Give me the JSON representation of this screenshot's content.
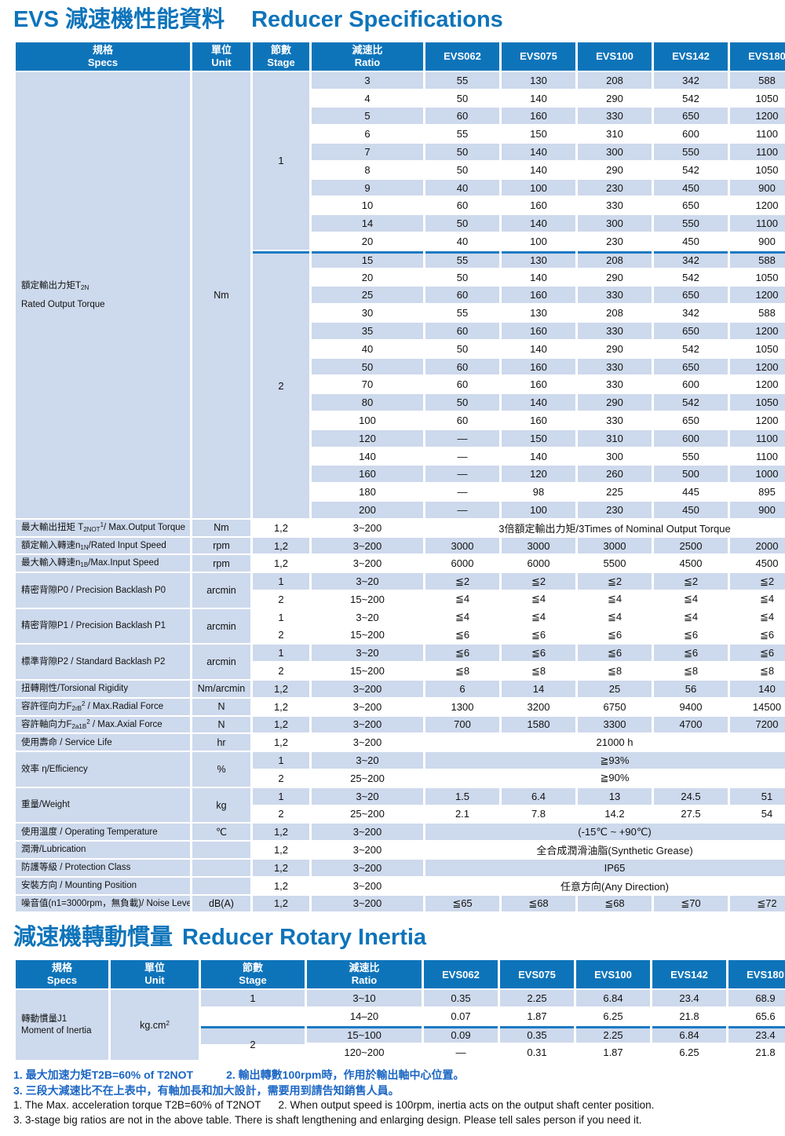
{
  "titles": {
    "spec_zh": "EVS 減速機性能資料",
    "spec_en": "Reducer Specifications",
    "inertia_zh": "減速機轉動慣量",
    "inertia_en": "Reducer Rotary Inertia"
  },
  "colors": {
    "brand_blue": "#0e74ba",
    "row_blue": "#cdd9ec",
    "divider_blue": "#1a7ac4",
    "note_blue": "#1b66c4",
    "text": "#111111"
  },
  "header": {
    "specs": [
      "規格",
      "Specs"
    ],
    "unit": [
      "單位",
      "Unit"
    ],
    "stage": [
      "節數",
      "Stage"
    ],
    "ratio": [
      "減速比",
      "Ratio"
    ],
    "models": [
      "EVS062",
      "EVS075",
      "EVS100",
      "EVS142",
      "EVS180"
    ]
  },
  "spec_table": {
    "torque": {
      "label_zh": [
        {
          "t": "額定輸出力矩T"
        },
        {
          "t": "2N",
          "s": "sub"
        }
      ],
      "label_en": "Rated Output Torque",
      "unit": "Nm",
      "stage1_label": "1",
      "stage2_label": "2",
      "stage1": [
        {
          "ratio": "3",
          "values": [
            "55",
            "130",
            "208",
            "342",
            "588"
          ],
          "shade": true
        },
        {
          "ratio": "4",
          "values": [
            "50",
            "140",
            "290",
            "542",
            "1050"
          ],
          "shade": false
        },
        {
          "ratio": "5",
          "values": [
            "60",
            "160",
            "330",
            "650",
            "1200"
          ],
          "shade": true
        },
        {
          "ratio": "6",
          "values": [
            "55",
            "150",
            "310",
            "600",
            "1100"
          ],
          "shade": false
        },
        {
          "ratio": "7",
          "values": [
            "50",
            "140",
            "300",
            "550",
            "1100"
          ],
          "shade": true
        },
        {
          "ratio": "8",
          "values": [
            "50",
            "140",
            "290",
            "542",
            "1050"
          ],
          "shade": false
        },
        {
          "ratio": "9",
          "values": [
            "40",
            "100",
            "230",
            "450",
            "900"
          ],
          "shade": true
        },
        {
          "ratio": "10",
          "values": [
            "60",
            "160",
            "330",
            "650",
            "1200"
          ],
          "shade": false
        },
        {
          "ratio": "14",
          "values": [
            "50",
            "140",
            "300",
            "550",
            "1100"
          ],
          "shade": true
        },
        {
          "ratio": "20",
          "values": [
            "40",
            "100",
            "230",
            "450",
            "900"
          ],
          "shade": false
        }
      ],
      "stage2": [
        {
          "ratio": "15",
          "values": [
            "55",
            "130",
            "208",
            "342",
            "588"
          ],
          "shade": true
        },
        {
          "ratio": "20",
          "values": [
            "50",
            "140",
            "290",
            "542",
            "1050"
          ],
          "shade": false
        },
        {
          "ratio": "25",
          "values": [
            "60",
            "160",
            "330",
            "650",
            "1200"
          ],
          "shade": true
        },
        {
          "ratio": "30",
          "values": [
            "55",
            "130",
            "208",
            "342",
            "588"
          ],
          "shade": false
        },
        {
          "ratio": "35",
          "values": [
            "60",
            "160",
            "330",
            "650",
            "1200"
          ],
          "shade": true
        },
        {
          "ratio": "40",
          "values": [
            "50",
            "140",
            "290",
            "542",
            "1050"
          ],
          "shade": false
        },
        {
          "ratio": "50",
          "values": [
            "60",
            "160",
            "330",
            "650",
            "1200"
          ],
          "shade": true
        },
        {
          "ratio": "70",
          "values": [
            "60",
            "160",
            "330",
            "600",
            "1200"
          ],
          "shade": false
        },
        {
          "ratio": "80",
          "values": [
            "50",
            "140",
            "290",
            "542",
            "1050"
          ],
          "shade": true
        },
        {
          "ratio": "100",
          "values": [
            "60",
            "160",
            "330",
            "650",
            "1200"
          ],
          "shade": false
        },
        {
          "ratio": "120",
          "values": [
            "—",
            "150",
            "310",
            "600",
            "1100"
          ],
          "shade": true
        },
        {
          "ratio": "140",
          "values": [
            "—",
            "140",
            "300",
            "550",
            "1100"
          ],
          "shade": false
        },
        {
          "ratio": "160",
          "values": [
            "—",
            "120",
            "260",
            "500",
            "1000"
          ],
          "shade": true
        },
        {
          "ratio": "180",
          "values": [
            "—",
            "98",
            "225",
            "445",
            "895"
          ],
          "shade": false
        },
        {
          "ratio": "200",
          "values": [
            "—",
            "100",
            "230",
            "450",
            "900"
          ],
          "shade": true
        }
      ]
    },
    "groups": [
      {
        "label": [
          {
            "t": "最大輸出扭矩 T"
          },
          {
            "t": "2NOT",
            "s": "sub"
          },
          {
            "t": "1",
            "s": "sup"
          },
          {
            "t": "/ Max.Output Torque"
          }
        ],
        "unit": "Nm",
        "rows": [
          {
            "stage": "1,2",
            "ratio": "3~200",
            "span": "3倍額定輸出力矩/3Times of Nominal Output Torque",
            "shade": false
          }
        ]
      },
      {
        "label": [
          {
            "t": "額定輸入轉速n"
          },
          {
            "t": "1N",
            "s": "sub"
          },
          {
            "t": "/Rated Input Speed"
          }
        ],
        "unit": "rpm",
        "rows": [
          {
            "stage": "1,2",
            "ratio": "3~200",
            "values": [
              "3000",
              "3000",
              "3000",
              "2500",
              "2000"
            ],
            "shade": true
          }
        ]
      },
      {
        "label": [
          {
            "t": "最大輸入轉速n"
          },
          {
            "t": "1B",
            "s": "sub"
          },
          {
            "t": "/Max.Input Speed"
          }
        ],
        "unit": "rpm",
        "rows": [
          {
            "stage": "1,2",
            "ratio": "3~200",
            "values": [
              "6000",
              "6000",
              "5500",
              "4500",
              "4500"
            ],
            "shade": false
          }
        ]
      },
      {
        "label": [
          {
            "t": "精密背隙P0 / Precision Backlash P0"
          }
        ],
        "unit": "arcmin",
        "rows": [
          {
            "stage": "1",
            "ratio": "3~20",
            "values": [
              "≦2",
              "≦2",
              "≦2",
              "≦2",
              "≦2"
            ],
            "shade": true
          },
          {
            "stage": "2",
            "ratio": "15~200",
            "values": [
              "≦4",
              "≦4",
              "≦4",
              "≦4",
              "≦4"
            ],
            "shade": false
          }
        ]
      },
      {
        "label": [
          {
            "t": "精密背隙P1 / Precision Backlash P1"
          }
        ],
        "unit": "arcmin",
        "rows": [
          {
            "stage": "1",
            "ratio": "3~20",
            "values": [
              "≦4",
              "≦4",
              "≦4",
              "≦4",
              "≦4"
            ],
            "shade": false
          },
          {
            "stage": "2",
            "ratio": "15~200",
            "values": [
              "≦6",
              "≦6",
              "≦6",
              "≦6",
              "≦6"
            ],
            "shade": false
          }
        ]
      },
      {
        "label": [
          {
            "t": "標準背隙P2 / Standard Backlash P2"
          }
        ],
        "unit": "arcmin",
        "rows": [
          {
            "stage": "1",
            "ratio": "3~20",
            "values": [
              "≦6",
              "≦6",
              "≦6",
              "≦6",
              "≦6"
            ],
            "shade": true
          },
          {
            "stage": "2",
            "ratio": "15~200",
            "values": [
              "≦8",
              "≦8",
              "≦8",
              "≦8",
              "≦8"
            ],
            "shade": false
          }
        ]
      },
      {
        "label": [
          {
            "t": "扭轉剛性/Torsional Rigidity"
          }
        ],
        "unit": "Nm/arcmin",
        "rows": [
          {
            "stage": "1,2",
            "ratio": "3~200",
            "values": [
              "6",
              "14",
              "25",
              "56",
              "140"
            ],
            "shade": true
          }
        ]
      },
      {
        "label": [
          {
            "t": "容許徑向力F"
          },
          {
            "t": "2rB",
            "s": "sub"
          },
          {
            "t": "2",
            "s": "sup"
          },
          {
            "t": " / Max.Radial Force"
          }
        ],
        "unit": "N",
        "rows": [
          {
            "stage": "1,2",
            "ratio": "3~200",
            "values": [
              "1300",
              "3200",
              "6750",
              "9400",
              "14500"
            ],
            "shade": false
          }
        ]
      },
      {
        "label": [
          {
            "t": "容許軸向力F"
          },
          {
            "t": "2a1B",
            "s": "sub"
          },
          {
            "t": "2",
            "s": "sup"
          },
          {
            "t": " / Max.Axial Force"
          }
        ],
        "unit": "N",
        "rows": [
          {
            "stage": "1,2",
            "ratio": "3~200",
            "values": [
              "700",
              "1580",
              "3300",
              "4700",
              "7200"
            ],
            "shade": true
          }
        ]
      },
      {
        "label": [
          {
            "t": "使用壽命 / Service Life"
          }
        ],
        "unit": "hr",
        "rows": [
          {
            "stage": "1,2",
            "ratio": "3~200",
            "span": "21000 h",
            "shade": false
          }
        ]
      },
      {
        "label": [
          {
            "t": "效率 η/Efficiency"
          }
        ],
        "unit": "%",
        "rows": [
          {
            "stage": "1",
            "ratio": "3~20",
            "span": "≧93%",
            "shade": true
          },
          {
            "stage": "2",
            "ratio": "25~200",
            "span": "≧90%",
            "shade": false
          }
        ]
      },
      {
        "label": [
          {
            "t": "重量/Weight"
          }
        ],
        "unit": "kg",
        "rows": [
          {
            "stage": "1",
            "ratio": "3~20",
            "values": [
              "1.5",
              "6.4",
              "13",
              "24.5",
              "51"
            ],
            "shade": true
          },
          {
            "stage": "2",
            "ratio": "25~200",
            "values": [
              "2.1",
              "7.8",
              "14.2",
              "27.5",
              "54"
            ],
            "shade": false
          }
        ]
      },
      {
        "label": [
          {
            "t": "使用溫度 / Operating Temperature"
          }
        ],
        "unit": "℃",
        "rows": [
          {
            "stage": "1,2",
            "ratio": "3~200",
            "span": "(-15℃ ~ +90℃)",
            "shade": true
          }
        ]
      },
      {
        "label": [
          {
            "t": "潤滑/Lubrication"
          }
        ],
        "unit": "",
        "rows": [
          {
            "stage": "1,2",
            "ratio": "3~200",
            "span": "全合成潤滑油脂(Synthetic Grease)",
            "shade": false
          }
        ]
      },
      {
        "label": [
          {
            "t": "防護等級 / Protection Class"
          }
        ],
        "unit": "",
        "rows": [
          {
            "stage": "1,2",
            "ratio": "3~200",
            "span": "IP65",
            "shade": true
          }
        ]
      },
      {
        "label": [
          {
            "t": "安裝方向 / Mounting Position"
          }
        ],
        "unit": "",
        "rows": [
          {
            "stage": "1,2",
            "ratio": "3~200",
            "span": "任意方向(Any Direction)",
            "shade": false
          }
        ]
      },
      {
        "label": [
          {
            "t": "噪音值(n1=3000rpm，無負載)/ Noise Level"
          }
        ],
        "unit": "dB(A)",
        "rows": [
          {
            "stage": "1,2",
            "ratio": "3~200",
            "values": [
              "≦65",
              "≦68",
              "≦68",
              "≦70",
              "≦72"
            ],
            "shade": true
          }
        ]
      }
    ]
  },
  "inertia_table": {
    "label_zh": "轉動慣量J1",
    "label_en": "Moment of Inertia",
    "unit": [
      {
        "t": "kg.cm"
      },
      {
        "t": "2",
        "s": "sup"
      }
    ],
    "rows": [
      {
        "stage": "1",
        "stageSpan": 1,
        "ratio": "3~10",
        "values": [
          "0.35",
          "2.25",
          "6.84",
          "23.4",
          "68.9"
        ],
        "shade": true
      },
      {
        "stage": "",
        "stageSpan": 1,
        "ratio": "14–20",
        "values": [
          "0.07",
          "1.87",
          "6.25",
          "21.8",
          "65.6"
        ],
        "shade": false
      },
      {
        "stage": "2",
        "stageSpan": 2,
        "grad": true,
        "tline": true,
        "ratio": "15~100",
        "values": [
          "0.09",
          "0.35",
          "2.25",
          "6.84",
          "23.4"
        ],
        "shade": true
      },
      {
        "ratio": "120~200",
        "values": [
          "—",
          "0.31",
          "1.87",
          "6.25",
          "21.8"
        ],
        "shade": false
      }
    ]
  },
  "notes": {
    "zh1": "1. 最大加速力矩T2B=60% of T2NOT",
    "zh2": "2. 輸出轉數100rpm時，作用於輸出軸中心位置。",
    "zh3": "3. 三段大減速比不在上表中，有軸加長和加大設計，需要用到請告知銷售人員。",
    "en1": "1. The Max. acceleration torque T2B=60% of T2NOT",
    "en2": "2. When output speed is 100rpm, inertia acts on the output shaft center position.",
    "en3": "3. 3-stage big ratios are not in the above table. There is shaft lengthening and enlarging design. Please tell sales person if you need it."
  }
}
